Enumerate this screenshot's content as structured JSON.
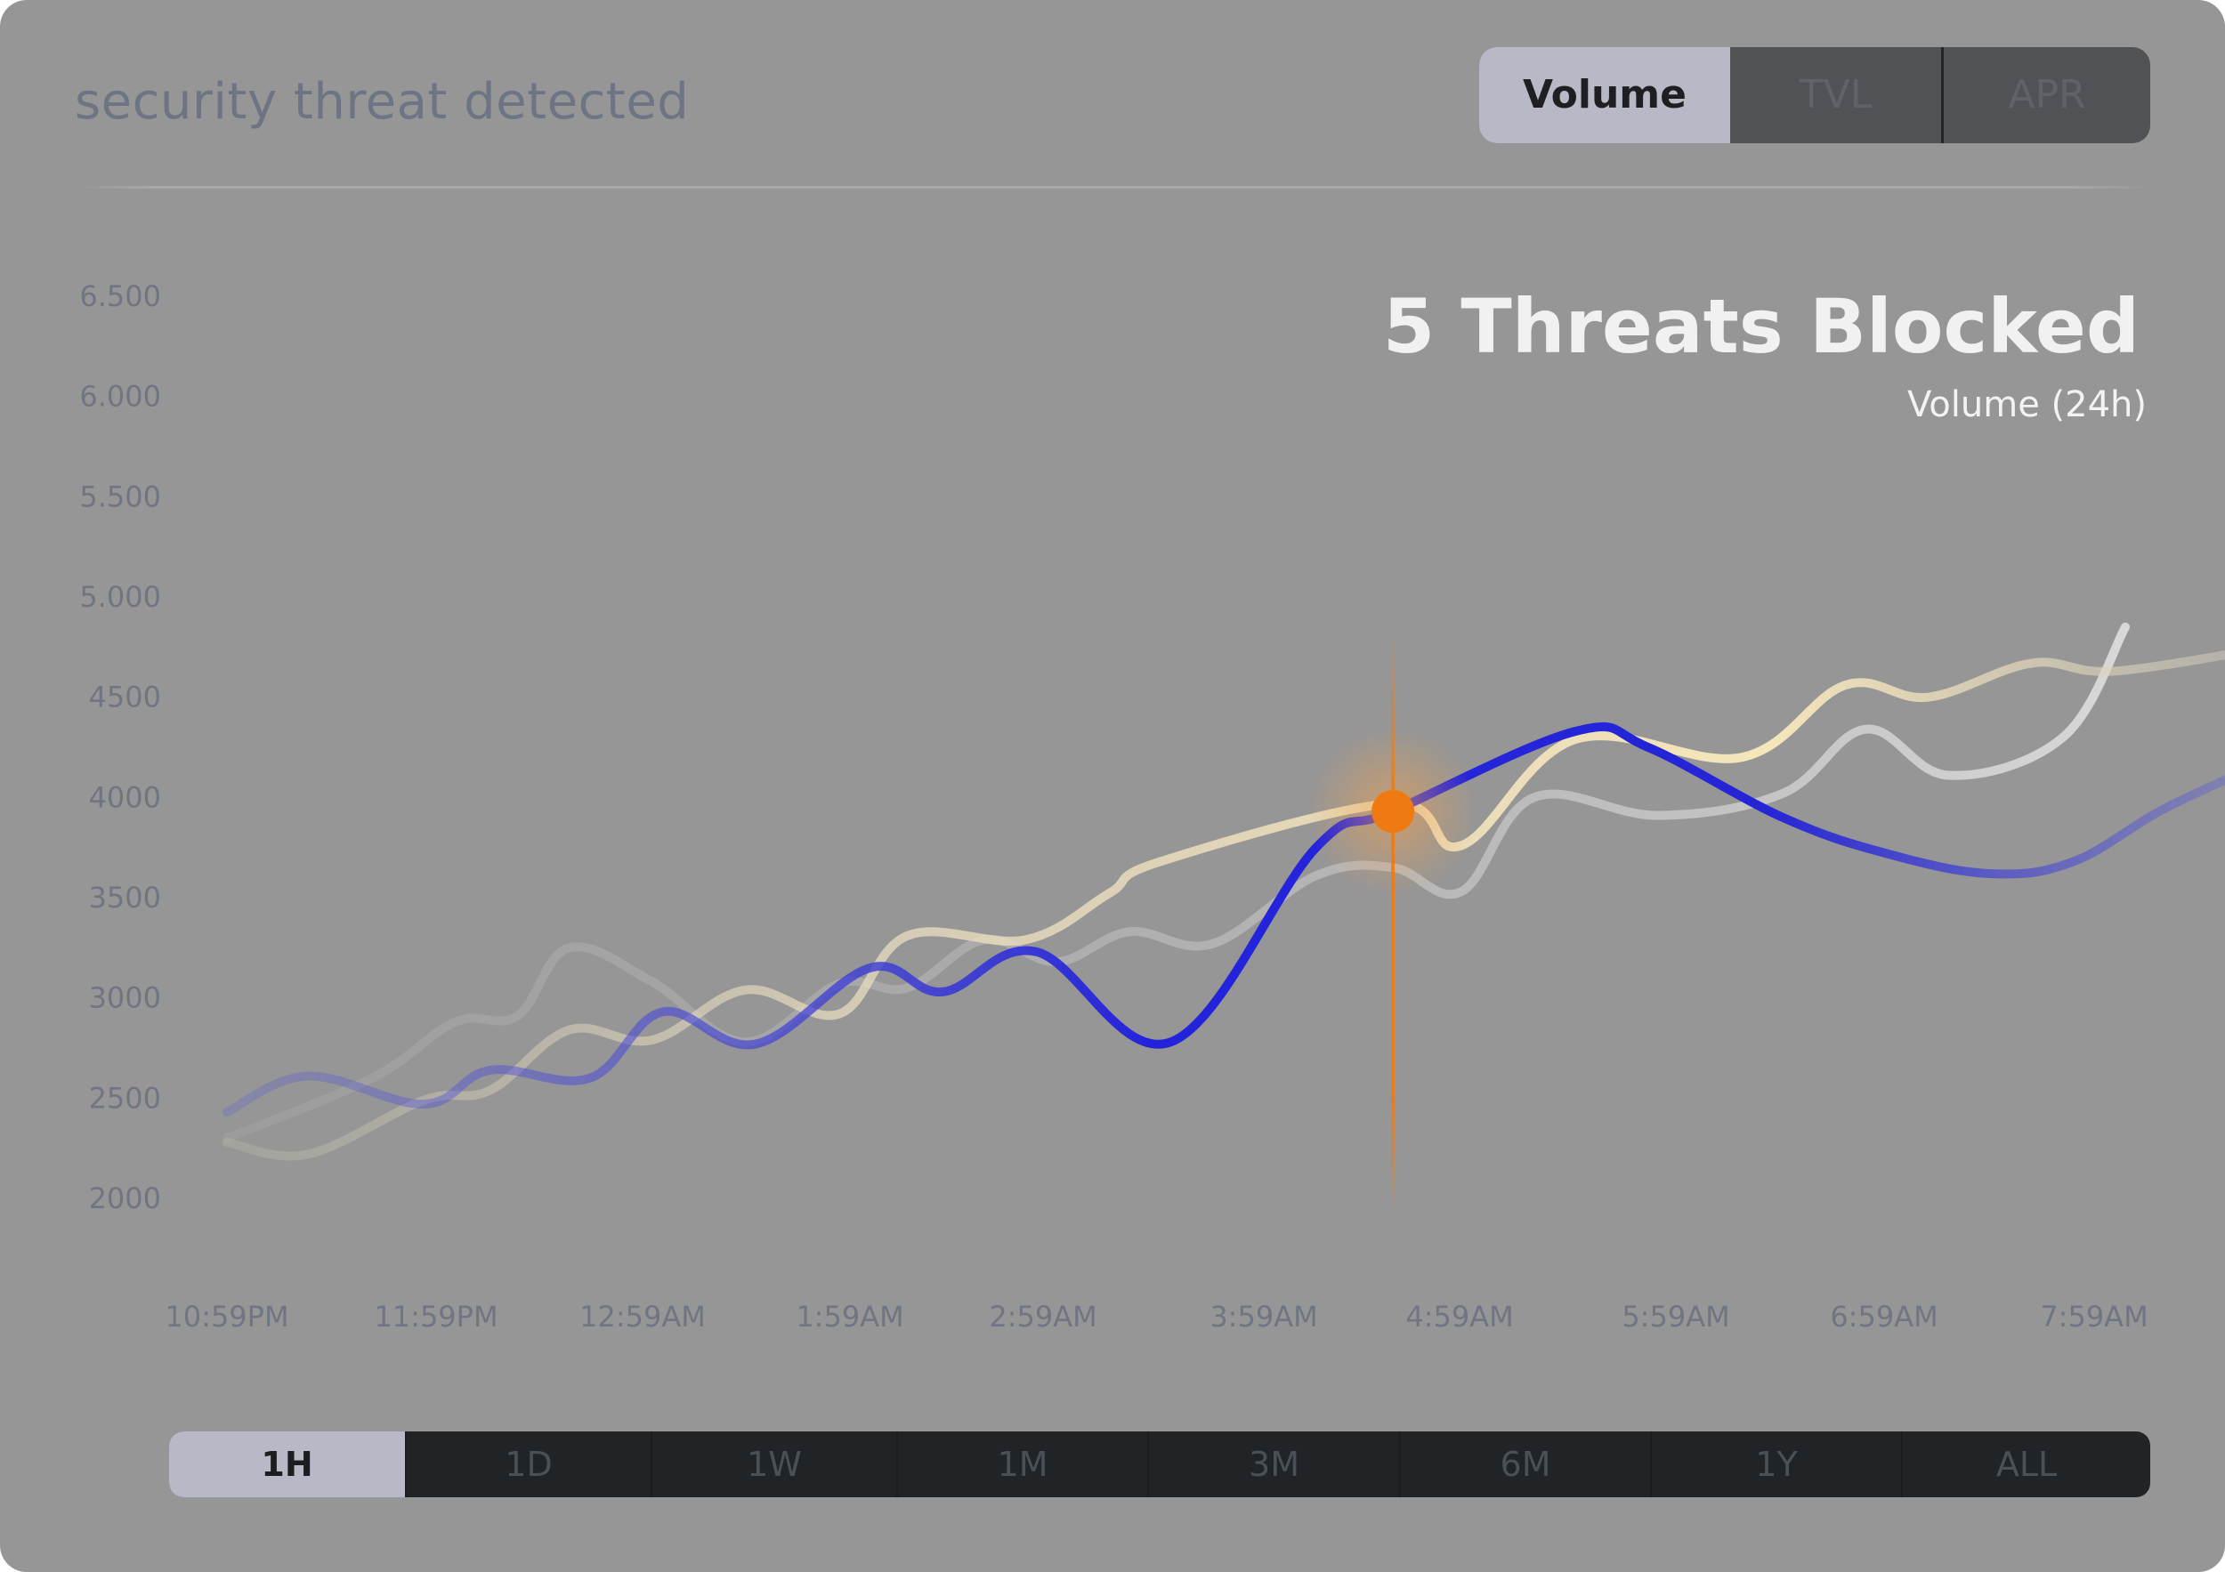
{
  "header": {
    "title": "security threat detected",
    "metric_tabs": [
      {
        "label": "Volume",
        "active": true
      },
      {
        "label": "TVL",
        "active": false
      },
      {
        "label": "APR",
        "active": false
      }
    ]
  },
  "summary": {
    "headline": "5 Threats Blocked",
    "subtitle": "Volume (24h)"
  },
  "range_tabs": [
    {
      "label": "1H",
      "active": true
    },
    {
      "label": "1D",
      "active": false
    },
    {
      "label": "1W",
      "active": false
    },
    {
      "label": "1M",
      "active": false
    },
    {
      "label": "3M",
      "active": false
    },
    {
      "label": "6M",
      "active": false
    },
    {
      "label": "1Y",
      "active": false
    },
    {
      "label": "ALL",
      "active": false
    }
  ],
  "colors": {
    "card_bg": "#969696",
    "blue_series": "#1f1fd6",
    "cream_series": "#f3e3b8",
    "gray_series": "#c6c6c6",
    "highlight": "#f07a12"
  },
  "chart_data": {
    "type": "line",
    "x": [
      "10:59PM",
      "11:59PM",
      "12:59AM",
      "1:59AM",
      "2:59AM",
      "3:59AM",
      "4:59AM",
      "5:59AM",
      "6:59AM",
      "7:59AM"
    ],
    "y_tick_labels": [
      "2000",
      "2500",
      "3000",
      "3500",
      "4000",
      "4500",
      "5.000",
      "5.500",
      "6.000",
      "6.500"
    ],
    "ylim": [
      2000,
      6500
    ],
    "grid": false,
    "series": [
      {
        "color": "#1f1fd6",
        "points": [
          [
            0.0,
            2430
          ],
          [
            0.39,
            2610
          ],
          [
            0.95,
            2470
          ],
          [
            1.27,
            2640
          ],
          [
            1.75,
            2600
          ],
          [
            2.1,
            2930
          ],
          [
            2.55,
            2770
          ],
          [
            3.1,
            3150
          ],
          [
            3.45,
            3030
          ],
          [
            3.9,
            3230
          ],
          [
            4.55,
            2780
          ],
          [
            5.25,
            3750
          ],
          [
            5.62,
            3930
          ],
          [
            6.5,
            4330
          ],
          [
            6.85,
            4250
          ],
          [
            7.5,
            3900
          ],
          [
            8.0,
            3720
          ],
          [
            8.5,
            3620
          ],
          [
            8.9,
            3680
          ],
          [
            9.35,
            3950
          ],
          [
            9.9,
            4210
          ]
        ]
      },
      {
        "color": "#f3e3b8",
        "points": [
          [
            0.0,
            2280
          ],
          [
            0.39,
            2220
          ],
          [
            0.95,
            2490
          ],
          [
            1.27,
            2540
          ],
          [
            1.65,
            2840
          ],
          [
            2.05,
            2790
          ],
          [
            2.5,
            3040
          ],
          [
            2.95,
            2920
          ],
          [
            3.28,
            3310
          ],
          [
            3.85,
            3290
          ],
          [
            4.25,
            3520
          ],
          [
            4.5,
            3680
          ],
          [
            5.62,
            3970
          ],
          [
            5.95,
            3760
          ],
          [
            6.5,
            4290
          ],
          [
            7.3,
            4200
          ],
          [
            7.8,
            4560
          ],
          [
            8.2,
            4500
          ],
          [
            8.7,
            4670
          ],
          [
            9.1,
            4630
          ],
          [
            9.9,
            4760
          ]
        ]
      },
      {
        "color": "#c6c6c6",
        "points": [
          [
            0.0,
            2300
          ],
          [
            0.7,
            2600
          ],
          [
            1.1,
            2880
          ],
          [
            1.4,
            2910
          ],
          [
            1.65,
            3250
          ],
          [
            2.05,
            3080
          ],
          [
            2.5,
            2780
          ],
          [
            2.95,
            3070
          ],
          [
            3.28,
            3050
          ],
          [
            3.65,
            3290
          ],
          [
            4.0,
            3180
          ],
          [
            4.35,
            3330
          ],
          [
            4.75,
            3270
          ],
          [
            5.25,
            3610
          ],
          [
            5.62,
            3650
          ],
          [
            5.95,
            3530
          ],
          [
            6.3,
            4000
          ],
          [
            6.9,
            3910
          ],
          [
            7.5,
            4020
          ],
          [
            7.9,
            4340
          ],
          [
            8.3,
            4110
          ],
          [
            8.85,
            4300
          ],
          [
            9.15,
            4850
          ]
        ]
      }
    ],
    "highlight": {
      "x": 5.62,
      "y": 3930
    }
  }
}
